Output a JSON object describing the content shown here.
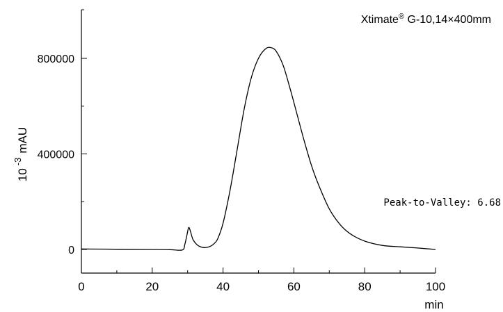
{
  "chart_data": {
    "type": "line",
    "annotation_top": "Xtimate",
    "annotation_reg": "®",
    "annotation_rest": " G-10,14×400mm",
    "annotation_peak": "Peak-to-Valley: 6.68",
    "xlabel": "min",
    "ylabel_base": "10",
    "ylabel_exp": "-3",
    "ylabel_unit": "mAU",
    "xlim": [
      0,
      100
    ],
    "ylim": [
      -100000,
      1000000
    ],
    "x_ticks": [
      0,
      20,
      40,
      60,
      80,
      100
    ],
    "x_tick_labels": [
      "0",
      "20",
      "40",
      "60",
      "80",
      "100"
    ],
    "y_ticks": [
      0,
      400000,
      800000
    ],
    "y_tick_labels": [
      "0",
      "400000",
      "800000"
    ],
    "grid": false,
    "series": [
      {
        "x": [
          0,
          10,
          20,
          25,
          28.5,
          29.2,
          29.8,
          30.3,
          30.8,
          31.5,
          32.5,
          33.5,
          34.5,
          35.5,
          36.5,
          37.5,
          38.5,
          40,
          42,
          44,
          46,
          48,
          50,
          52,
          53.5,
          55,
          57,
          59,
          61,
          63,
          65,
          67,
          70,
          73,
          76,
          80,
          85,
          90,
          95,
          100
        ],
        "y": [
          2000,
          1000,
          0,
          -1000,
          -2000,
          20000,
          60000,
          92000,
          75000,
          42000,
          22000,
          12000,
          8000,
          9000,
          14000,
          25000,
          45000,
          110000,
          250000,
          420000,
          590000,
          720000,
          800000,
          840000,
          845000,
          830000,
          770000,
          670000,
          560000,
          450000,
          350000,
          270000,
          170000,
          105000,
          65000,
          35000,
          17000,
          11000,
          6000,
          0
        ]
      }
    ]
  }
}
